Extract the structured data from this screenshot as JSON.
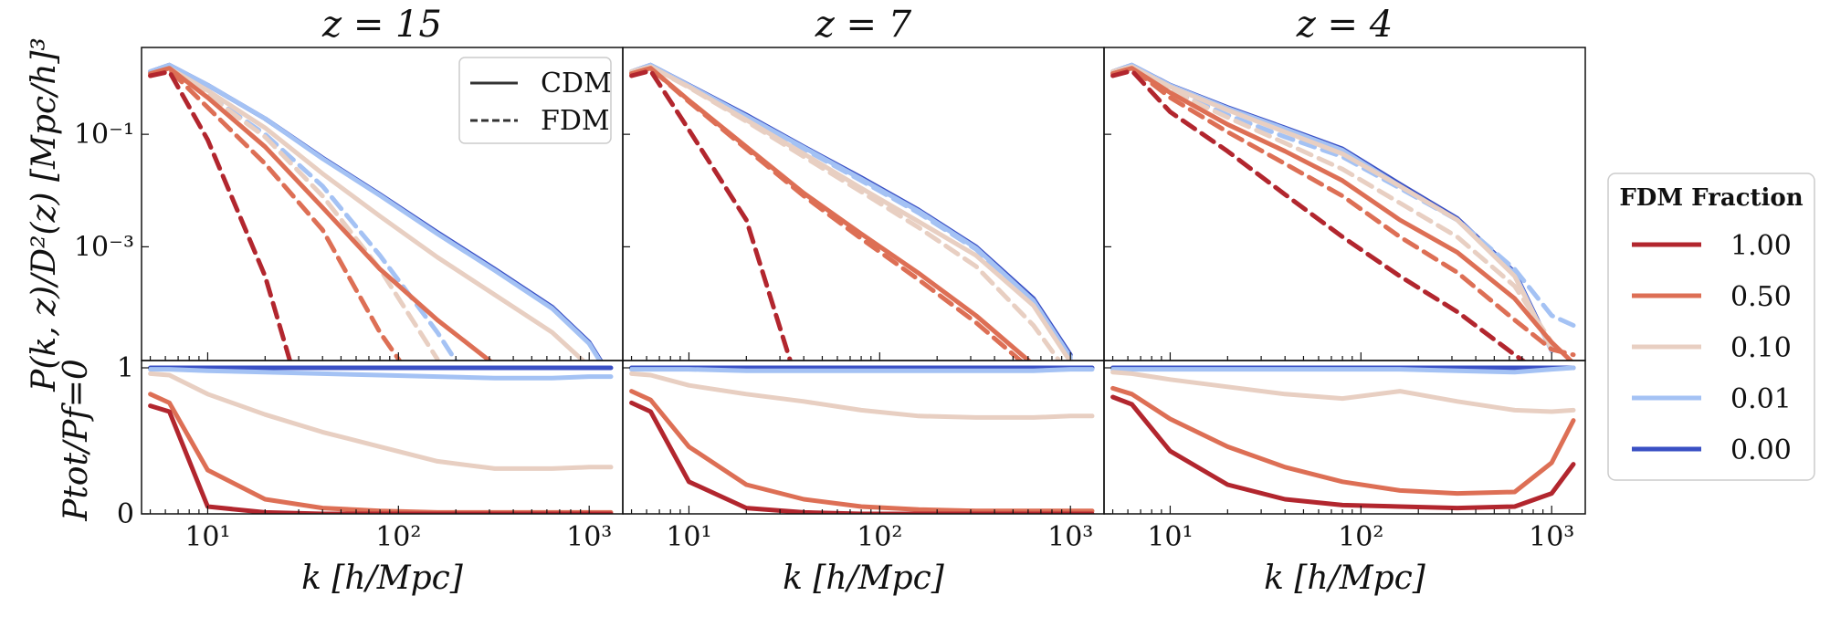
{
  "chart_data": {
    "type": "line",
    "panels": [
      {
        "title": "z = 15"
      },
      {
        "title": "z = 7"
      },
      {
        "title": "z = 4"
      }
    ],
    "xlabel": "k [h/Mpc]",
    "ylabel_top": "P(k, z)/D²(z) [Mpc/h]³",
    "ylabel_bottom": "Ptot/Pf=0",
    "x_scale": "log",
    "xlim": [
      4.5,
      1500
    ],
    "x_ticks": [
      {
        "value": 10,
        "label": "10¹"
      },
      {
        "value": 100,
        "label": "10²"
      },
      {
        "value": 1000,
        "label": "10³"
      }
    ],
    "top_y_scale": "log",
    "top_ylim": [
      9.5e-06,
      3.5
    ],
    "top_y_ticks": [
      {
        "value": 0.1,
        "label": "10⁻¹"
      },
      {
        "value": 0.001,
        "label": "10⁻³"
      }
    ],
    "bottom_ylim": [
      0,
      1.05
    ],
    "bottom_y_ticks": [
      {
        "value": 0,
        "label": "0"
      },
      {
        "value": 1,
        "label": "1"
      }
    ],
    "style_legend": [
      {
        "label": "CDM",
        "dash": "solid"
      },
      {
        "label": "FDM",
        "dash": "dashed"
      }
    ],
    "color_legend": {
      "title": "FDM Fraction",
      "location": "right",
      "entries": [
        {
          "label": "1.00",
          "color": "#b2262e"
        },
        {
          "label": "0.50",
          "color": "#dd6f55"
        },
        {
          "label": "0.10",
          "color": "#e8cfc2"
        },
        {
          "label": "0.01",
          "color": "#a4c2f4"
        },
        {
          "label": "0.00",
          "color": "#3a50c4"
        }
      ]
    },
    "k_grid": [
      5,
      6.3,
      10,
      20,
      40,
      80,
      160,
      320,
      640,
      1000,
      1300
    ],
    "top_series": [
      [
        {
          "fraction": "0.00",
          "kind": "cdm",
          "values": [
            1.3,
            1.7,
            0.75,
            0.19,
            0.038,
            0.0085,
            0.0018,
            0.0004,
            8.5e-05,
            2e-05,
            4.8e-06
          ]
        },
        {
          "fraction": "0.01",
          "kind": "cdm",
          "values": [
            1.3,
            1.7,
            0.75,
            0.19,
            0.037,
            0.0082,
            0.0017,
            0.00038,
            8e-05,
            1.9e-05,
            4.5e-06
          ]
        },
        {
          "fraction": "0.01",
          "kind": "fdm",
          "values": [
            1.2,
            1.5,
            0.5,
            0.1,
            0.012,
            0.0007,
            3e-05,
            8e-07
          ]
        },
        {
          "fraction": "0.10",
          "kind": "cdm",
          "values": [
            1.2,
            1.5,
            0.6,
            0.13,
            0.02,
            0.0035,
            0.00065,
            0.00014,
            3e-05,
            7.5e-06
          ]
        },
        {
          "fraction": "0.10",
          "kind": "fdm",
          "values": [
            1.2,
            1.5,
            0.5,
            0.09,
            0.008,
            0.0004,
            1e-05
          ]
        },
        {
          "fraction": "0.50",
          "kind": "cdm",
          "values": [
            1.2,
            1.5,
            0.45,
            0.06,
            0.005,
            0.0004,
            5e-05,
            8e-06
          ]
        },
        {
          "fraction": "0.50",
          "kind": "fdm",
          "values": [
            1.1,
            1.4,
            0.3,
            0.03,
            0.002,
            3e-05,
            1e-06
          ]
        },
        {
          "fraction": "1.00",
          "kind": "fdm",
          "values": [
            1.1,
            1.3,
            0.08,
            0.0003,
            1e-07
          ]
        }
      ],
      [
        {
          "fraction": "0.00",
          "kind": "cdm",
          "values": [
            1.3,
            1.7,
            0.75,
            0.22,
            0.06,
            0.017,
            0.0045,
            0.001,
            0.00012,
            1.2e-05
          ]
        },
        {
          "fraction": "0.01",
          "kind": "cdm",
          "values": [
            1.3,
            1.7,
            0.74,
            0.21,
            0.058,
            0.016,
            0.0043,
            0.00095,
            0.00011,
            1.1e-05
          ]
        },
        {
          "fraction": "0.01",
          "kind": "fdm",
          "values": [
            1.3,
            1.65,
            0.72,
            0.2,
            0.055,
            0.015,
            0.004,
            0.0009,
            0.0001,
            1e-05
          ]
        },
        {
          "fraction": "0.10",
          "kind": "cdm",
          "values": [
            1.3,
            1.6,
            0.7,
            0.18,
            0.045,
            0.011,
            0.0028,
            0.0007,
            9e-05,
            9e-06
          ]
        },
        {
          "fraction": "0.10",
          "kind": "fdm",
          "values": [
            1.3,
            1.6,
            0.68,
            0.17,
            0.04,
            0.0095,
            0.0022,
            0.00045,
            4e-05,
            5e-06
          ]
        },
        {
          "fraction": "0.50",
          "kind": "cdm",
          "values": [
            1.2,
            1.5,
            0.4,
            0.06,
            0.009,
            0.0017,
            0.00034,
            6e-05,
            8e-06
          ]
        },
        {
          "fraction": "0.50",
          "kind": "fdm",
          "values": [
            1.2,
            1.5,
            0.38,
            0.055,
            0.008,
            0.0014,
            0.00026,
            4.5e-05,
            6e-06
          ]
        },
        {
          "fraction": "1.00",
          "kind": "fdm",
          "values": [
            1.1,
            1.35,
            0.12,
            0.003,
            1.6e-06,
            1e-07
          ]
        }
      ],
      [
        {
          "fraction": "0.00",
          "kind": "cdm",
          "values": [
            1.3,
            1.7,
            0.75,
            0.3,
            0.13,
            0.055,
            0.013,
            0.0032,
            0.00035,
            1.5e-05
          ]
        },
        {
          "fraction": "0.01",
          "kind": "cdm",
          "values": [
            1.3,
            1.7,
            0.74,
            0.29,
            0.125,
            0.052,
            0.012,
            0.003,
            0.00033,
            1.4e-05
          ]
        },
        {
          "fraction": "0.01",
          "kind": "fdm",
          "values": [
            1.3,
            1.6,
            0.6,
            0.22,
            0.09,
            0.04,
            0.011,
            0.003,
            0.0004,
            6e-05,
            4e-05
          ]
        },
        {
          "fraction": "0.10",
          "kind": "cdm",
          "values": [
            1.3,
            1.6,
            0.7,
            0.27,
            0.11,
            0.045,
            0.012,
            0.003,
            0.0003,
            1.5e-05
          ]
        },
        {
          "fraction": "0.10",
          "kind": "fdm",
          "values": [
            1.3,
            1.6,
            0.6,
            0.2,
            0.07,
            0.024,
            0.006,
            0.0015,
            0.0002,
            2e-05
          ]
        },
        {
          "fraction": "0.50",
          "kind": "cdm",
          "values": [
            1.2,
            1.5,
            0.55,
            0.15,
            0.05,
            0.015,
            0.003,
            0.0008,
            0.00012,
            2e-05,
            8.5e-06
          ]
        },
        {
          "fraction": "0.50",
          "kind": "fdm",
          "values": [
            1.2,
            1.5,
            0.45,
            0.11,
            0.03,
            0.008,
            0.0015,
            0.00035,
            5e-05,
            1.5e-05,
            1.2e-05
          ]
        },
        {
          "fraction": "1.00",
          "kind": "fdm",
          "values": [
            1.1,
            1.35,
            0.25,
            0.05,
            0.0085,
            0.0015,
            0.0003,
            7e-05,
            1.2e-05,
            4e-06
          ]
        }
      ]
    ],
    "bottom_series": [
      [
        {
          "fraction": "0.00",
          "values": [
            1.0,
            1.0,
            1.0,
            1.0,
            1.0,
            1.0,
            1.0,
            1.0,
            1.0,
            1.0,
            1.0
          ]
        },
        {
          "fraction": "0.01",
          "values": [
            0.99,
            0.99,
            0.98,
            0.97,
            0.96,
            0.95,
            0.94,
            0.93,
            0.93,
            0.94,
            0.94
          ]
        },
        {
          "fraction": "0.10",
          "values": [
            0.96,
            0.95,
            0.82,
            0.68,
            0.56,
            0.46,
            0.36,
            0.31,
            0.31,
            0.32,
            0.32
          ]
        },
        {
          "fraction": "0.50",
          "values": [
            0.82,
            0.76,
            0.3,
            0.1,
            0.04,
            0.02,
            0.01,
            0.01,
            0.01,
            0.01,
            0.01
          ]
        },
        {
          "fraction": "1.00",
          "values": [
            0.74,
            0.7,
            0.05,
            0.01,
            0.0,
            0.0,
            0.0,
            0.0,
            0.0,
            0.0,
            0.0
          ]
        }
      ],
      [
        {
          "fraction": "0.00",
          "values": [
            1.0,
            1.0,
            1.0,
            1.0,
            1.0,
            1.0,
            1.0,
            1.0,
            1.0,
            1.0,
            1.0
          ]
        },
        {
          "fraction": "0.01",
          "values": [
            0.99,
            0.99,
            0.99,
            0.98,
            0.98,
            0.98,
            0.98,
            0.98,
            0.98,
            0.99,
            0.99
          ]
        },
        {
          "fraction": "0.10",
          "values": [
            0.96,
            0.95,
            0.88,
            0.82,
            0.77,
            0.71,
            0.67,
            0.66,
            0.66,
            0.67,
            0.67
          ]
        },
        {
          "fraction": "0.50",
          "values": [
            0.84,
            0.78,
            0.46,
            0.2,
            0.1,
            0.05,
            0.03,
            0.02,
            0.02,
            0.02,
            0.02
          ]
        },
        {
          "fraction": "1.00",
          "values": [
            0.76,
            0.7,
            0.22,
            0.04,
            0.01,
            0.0,
            0.0,
            0.0,
            0.0,
            0.0,
            0.0
          ]
        }
      ],
      [
        {
          "fraction": "0.00",
          "values": [
            1.0,
            1.0,
            1.0,
            1.0,
            1.0,
            1.0,
            1.0,
            1.0,
            1.0,
            1.0,
            1.0
          ]
        },
        {
          "fraction": "0.01",
          "values": [
            0.99,
            0.99,
            0.99,
            0.99,
            0.99,
            0.99,
            0.99,
            0.98,
            0.97,
            0.99,
            1.0
          ]
        },
        {
          "fraction": "0.10",
          "values": [
            0.97,
            0.96,
            0.92,
            0.87,
            0.82,
            0.79,
            0.84,
            0.77,
            0.71,
            0.7,
            0.71
          ]
        },
        {
          "fraction": "0.50",
          "values": [
            0.86,
            0.82,
            0.65,
            0.46,
            0.32,
            0.22,
            0.16,
            0.14,
            0.15,
            0.35,
            0.64
          ]
        },
        {
          "fraction": "1.00",
          "values": [
            0.8,
            0.75,
            0.43,
            0.2,
            0.1,
            0.06,
            0.05,
            0.04,
            0.05,
            0.14,
            0.34
          ]
        }
      ]
    ]
  }
}
